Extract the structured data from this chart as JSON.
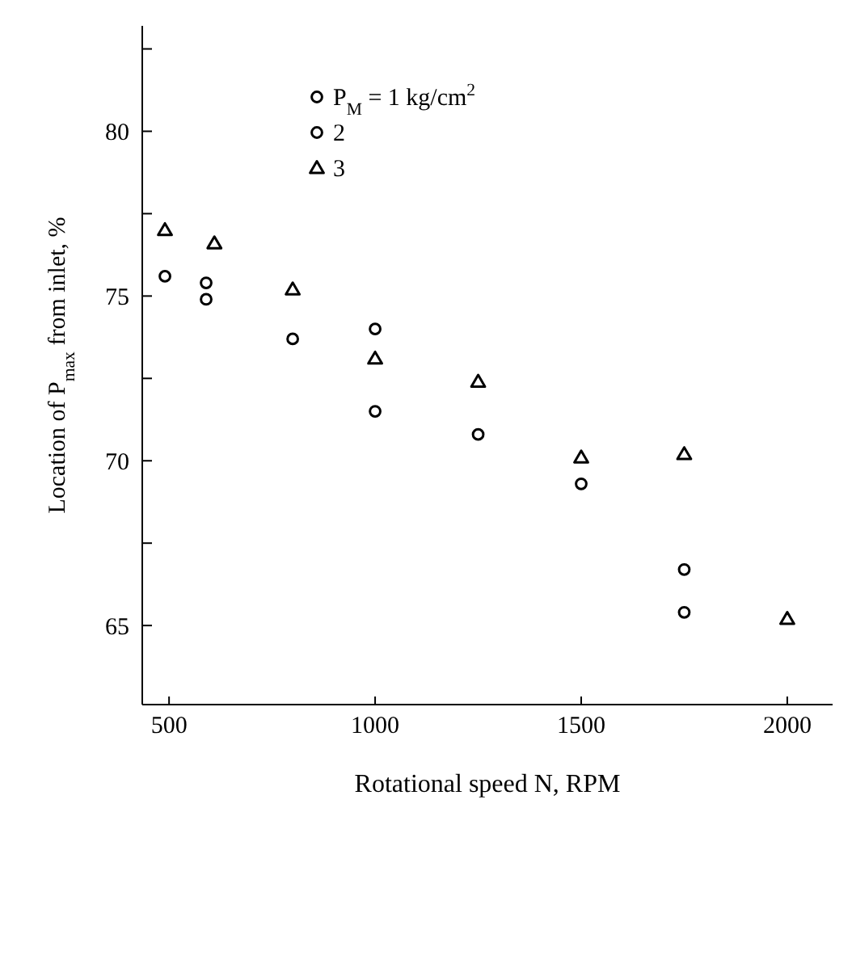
{
  "chart_data": {
    "type": "scatter",
    "xlabel": "Rotational speed N, RPM",
    "ylabel": "Location of P$_{max}$ from inlet, %",
    "xlim": [
      435,
      2110
    ],
    "xticks": [
      500,
      1000,
      1500,
      2000
    ],
    "ylim": [
      62.6,
      83.2
    ],
    "yticks": [
      65,
      {
        "value": 67.5,
        "label": null
      },
      70,
      {
        "value": 72.5,
        "label": null
      },
      75,
      {
        "value": 77.5,
        "label": null
      },
      80,
      {
        "value": 82.5,
        "label": null
      }
    ],
    "grid": false,
    "legend": "top",
    "series": [
      {
        "name": "P$_{M}$ = 1 kg/cm$^{2}$",
        "color": "#000000",
        "marker": "circle",
        "x": [
          590,
          800,
          1000,
          1250,
          1500,
          1750
        ],
        "values": [
          75.4,
          73.7,
          71.5,
          70.8,
          69.3,
          66.7
        ]
      },
      {
        "name": "2",
        "color": "#000000",
        "marker": "circle",
        "x": [
          490,
          590,
          800,
          1000,
          1750
        ],
        "values": [
          75.6,
          74.9,
          null,
          74.0,
          65.4
        ]
      },
      {
        "name": "3",
        "color": "#000000",
        "marker": "triangle",
        "x": [
          490,
          610,
          800,
          1000,
          1250,
          1500,
          1750,
          2000
        ],
        "values": [
          77.0,
          76.6,
          75.2,
          73.1,
          72.4,
          70.1,
          70.2,
          65.2
        ]
      }
    ]
  }
}
